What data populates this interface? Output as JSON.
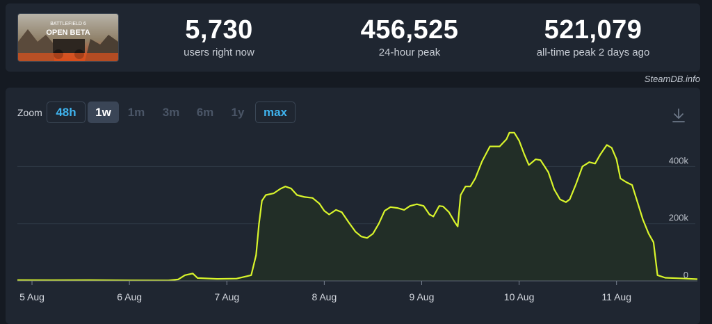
{
  "header": {
    "cover_text": [
      "BATTLEFIELD 6",
      "OPEN BETA"
    ],
    "stats": [
      {
        "value": "5,730",
        "label": "users right now"
      },
      {
        "value": "456,525",
        "label": "24-hour peak"
      },
      {
        "value": "521,079",
        "label": "all-time peak 2 days ago"
      }
    ],
    "credit": "SteamDB.info"
  },
  "toolbar": {
    "zoom_label": "Zoom",
    "buttons": [
      {
        "label": "48h",
        "state": "link"
      },
      {
        "label": "1w",
        "state": "selected"
      },
      {
        "label": "1m",
        "state": "disabled"
      },
      {
        "label": "3m",
        "state": "disabled"
      },
      {
        "label": "6m",
        "state": "disabled"
      },
      {
        "label": "1y",
        "state": "disabled"
      },
      {
        "label": "max",
        "state": "link"
      }
    ],
    "download_icon": "download-icon"
  },
  "colors": {
    "line": "#d9f52b",
    "fill": "#222e27",
    "grid": "#2f3845",
    "accent": "#3fb3ee"
  },
  "chart_data": {
    "type": "area",
    "x_tick_labels": [
      "5 Aug",
      "6 Aug",
      "7 Aug",
      "8 Aug",
      "9 Aug",
      "10 Aug",
      "11 Aug"
    ],
    "y_tick_labels": [
      "0",
      "200k",
      "400k"
    ],
    "ylim": [
      0,
      520000
    ],
    "grid": true,
    "x_days_range": [
      4.85,
      11.83
    ],
    "points": [
      [
        4.85,
        3000
      ],
      [
        5.2,
        2500
      ],
      [
        5.6,
        3000
      ],
      [
        6.0,
        2000
      ],
      [
        6.4,
        1500
      ],
      [
        6.5,
        5000
      ],
      [
        6.57,
        20000
      ],
      [
        6.65,
        26000
      ],
      [
        6.7,
        10000
      ],
      [
        6.9,
        7000
      ],
      [
        7.1,
        8000
      ],
      [
        7.25,
        20000
      ],
      [
        7.3,
        90000
      ],
      [
        7.33,
        200000
      ],
      [
        7.36,
        280000
      ],
      [
        7.4,
        300000
      ],
      [
        7.48,
        306000
      ],
      [
        7.55,
        322000
      ],
      [
        7.6,
        330000
      ],
      [
        7.66,
        323000
      ],
      [
        7.72,
        300000
      ],
      [
        7.8,
        293000
      ],
      [
        7.88,
        290000
      ],
      [
        7.95,
        270000
      ],
      [
        8.0,
        245000
      ],
      [
        8.05,
        232000
      ],
      [
        8.12,
        248000
      ],
      [
        8.18,
        240000
      ],
      [
        8.25,
        205000
      ],
      [
        8.32,
        172000
      ],
      [
        8.38,
        155000
      ],
      [
        8.44,
        150000
      ],
      [
        8.5,
        165000
      ],
      [
        8.56,
        200000
      ],
      [
        8.62,
        245000
      ],
      [
        8.68,
        258000
      ],
      [
        8.75,
        255000
      ],
      [
        8.82,
        248000
      ],
      [
        8.88,
        262000
      ],
      [
        8.95,
        268000
      ],
      [
        9.02,
        262000
      ],
      [
        9.08,
        232000
      ],
      [
        9.12,
        225000
      ],
      [
        9.18,
        262000
      ],
      [
        9.22,
        260000
      ],
      [
        9.28,
        240000
      ],
      [
        9.34,
        205000
      ],
      [
        9.37,
        190000
      ],
      [
        9.4,
        300000
      ],
      [
        9.45,
        330000
      ],
      [
        9.5,
        330000
      ],
      [
        9.55,
        358000
      ],
      [
        9.62,
        418000
      ],
      [
        9.7,
        470000
      ],
      [
        9.8,
        470000
      ],
      [
        9.87,
        495000
      ],
      [
        9.9,
        518000
      ],
      [
        9.95,
        518000
      ],
      [
        10.0,
        490000
      ],
      [
        10.05,
        445000
      ],
      [
        10.1,
        405000
      ],
      [
        10.17,
        425000
      ],
      [
        10.22,
        422000
      ],
      [
        10.3,
        380000
      ],
      [
        10.36,
        320000
      ],
      [
        10.42,
        285000
      ],
      [
        10.48,
        275000
      ],
      [
        10.52,
        285000
      ],
      [
        10.58,
        335000
      ],
      [
        10.65,
        400000
      ],
      [
        10.72,
        415000
      ],
      [
        10.78,
        410000
      ],
      [
        10.83,
        440000
      ],
      [
        10.9,
        475000
      ],
      [
        10.95,
        465000
      ],
      [
        11.0,
        425000
      ],
      [
        11.04,
        358000
      ],
      [
        11.1,
        345000
      ],
      [
        11.16,
        335000
      ],
      [
        11.22,
        270000
      ],
      [
        11.27,
        215000
      ],
      [
        11.33,
        165000
      ],
      [
        11.38,
        135000
      ],
      [
        11.42,
        20000
      ],
      [
        11.5,
        11000
      ],
      [
        11.65,
        9000
      ],
      [
        11.83,
        6000
      ]
    ]
  }
}
